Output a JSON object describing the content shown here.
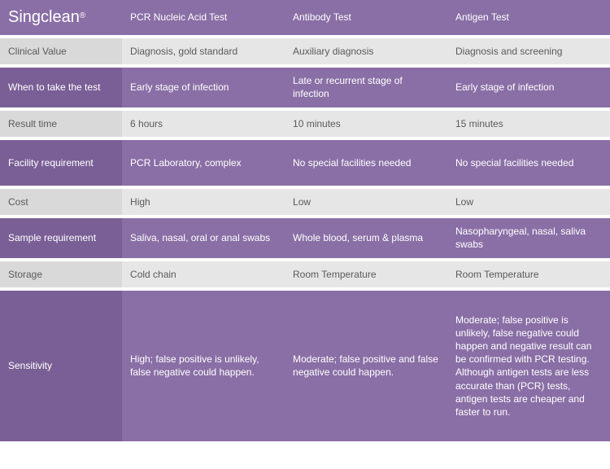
{
  "brand": "Singclean",
  "reg_mark": "®",
  "columns": {
    "c1": "PCR Nucleic Acid Test",
    "c2": "Antibody Test",
    "c3": "Antigen Test"
  },
  "rows": {
    "clinical_value": {
      "label": "Clinical Value",
      "c1": "Diagnosis, gold standard",
      "c2": "Auxiliary diagnosis",
      "c3": "Diagnosis and screening"
    },
    "when_to_take": {
      "label": "When to take the test",
      "c1": "Early stage of infection",
      "c2": "Late or recurrent stage of infection",
      "c3": "Early stage of infection"
    },
    "result_time": {
      "label": "Result time",
      "c1": "6 hours",
      "c2": "10 minutes",
      "c3": "15 minutes"
    },
    "facility": {
      "label": "Facility requirement",
      "c1": "PCR Laboratory, complex",
      "c2": "No special facilities needed",
      "c3": "No special facilities needed"
    },
    "cost": {
      "label": "Cost",
      "c1": "High",
      "c2": "Low",
      "c3": "Low"
    },
    "sample": {
      "label": "Sample requirement",
      "c1": "Saliva, nasal, oral or anal swabs",
      "c2": "Whole blood, serum & plasma",
      "c3": "Nasopharyngeal, nasal, saliva swabs"
    },
    "storage": {
      "label": "Storage",
      "c1": "Cold chain",
      "c2": "Room Temperature",
      "c3": "Room Temperature"
    },
    "sensitivity": {
      "label": "Sensitivity",
      "c1": "High; false positive is unlikely, false negative could happen.",
      "c2": "Moderate; false positive and false negative could happen.",
      "c3": "Moderate; false positive is unlikely, false negative could happen and negative result can be confirmed with PCR testing. Although antigen tests are less accurate than (PCR) tests, antigen tests are cheaper and faster to run."
    }
  },
  "colors": {
    "purple": "#8a6fa6",
    "purple_dark": "#7a5f96",
    "grey_light": "#e6e6e6",
    "grey_label": "#d9d9d9",
    "text_grey": "#5a5a5a",
    "white": "#ffffff"
  }
}
